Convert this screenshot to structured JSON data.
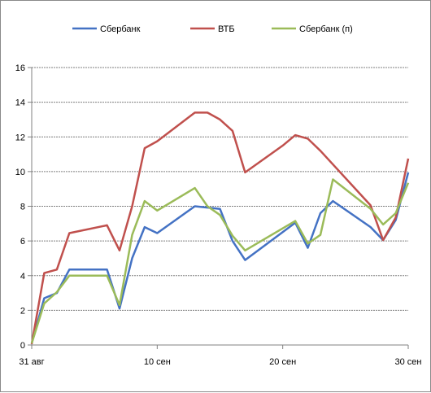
{
  "chart_data": {
    "type": "line",
    "title": "",
    "xlabel": "",
    "ylabel": "",
    "x": [
      0,
      1,
      2,
      3,
      4,
      5,
      6,
      7,
      8,
      9,
      10,
      11,
      12,
      13,
      14,
      15,
      16,
      17,
      18,
      19,
      20,
      21,
      22,
      23,
      24,
      25,
      26,
      27,
      28,
      29,
      30
    ],
    "x_tick_values": [
      0,
      10,
      20,
      30
    ],
    "x_tick_labels": [
      "31 авг",
      "10 сен",
      "20 сен",
      "30 сен"
    ],
    "xlim": [
      0,
      30
    ],
    "ylim": [
      0,
      16
    ],
    "y_ticks": [
      0,
      2,
      4,
      6,
      8,
      10,
      12,
      14,
      16
    ],
    "grid": "horizontal",
    "legend_position": "top",
    "series": [
      {
        "name": "Сбербанк",
        "color": "#4472C4",
        "values": [
          0.1,
          2.7,
          3.0,
          4.35,
          4.35,
          4.35,
          4.35,
          2.1,
          5.0,
          6.8,
          6.45,
          null,
          null,
          8.0,
          null,
          7.85,
          6.0,
          4.9,
          null,
          null,
          null,
          7.05,
          5.6,
          7.6,
          8.3,
          null,
          null,
          6.8,
          6.05,
          7.2,
          9.95
        ]
      },
      {
        "name": "ВТБ",
        "color": "#C0504D",
        "values": [
          0.05,
          4.15,
          4.35,
          6.45,
          null,
          null,
          6.9,
          5.45,
          8.0,
          11.35,
          11.75,
          null,
          null,
          13.4,
          13.4,
          13.0,
          12.35,
          9.95,
          null,
          null,
          11.5,
          12.1,
          11.9,
          11.2,
          null,
          null,
          null,
          8.05,
          6.05,
          7.35,
          10.75
        ]
      },
      {
        "name": "Сбербанк (п)",
        "color": "#9BBB59",
        "values": [
          0.1,
          2.4,
          3.05,
          4.0,
          4.0,
          4.0,
          4.0,
          2.3,
          6.35,
          8.3,
          7.75,
          null,
          null,
          9.05,
          8.0,
          7.5,
          6.3,
          5.45,
          null,
          null,
          null,
          7.15,
          5.85,
          6.35,
          9.55,
          null,
          null,
          7.85,
          6.95,
          7.6,
          9.35
        ]
      }
    ]
  }
}
